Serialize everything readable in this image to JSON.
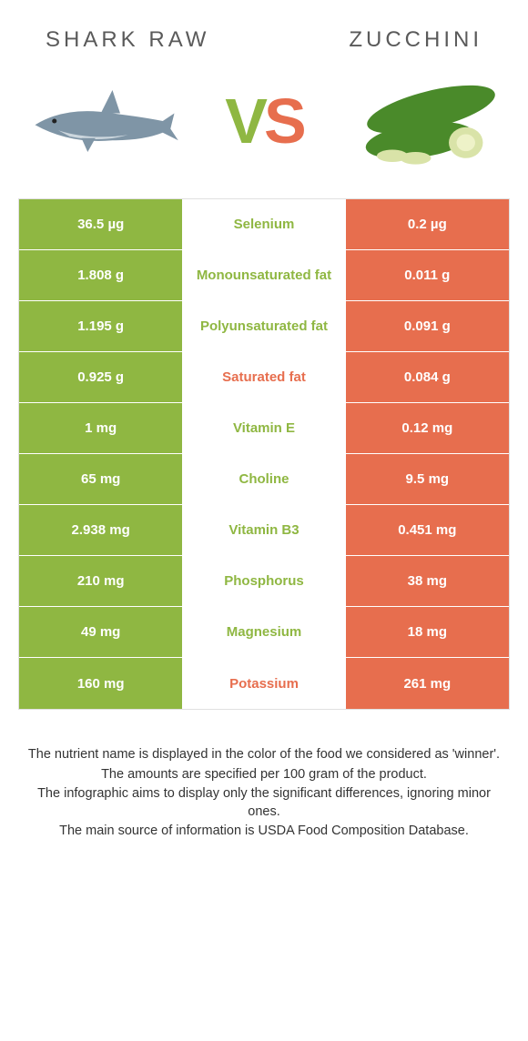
{
  "title_left": "SHARK RAW",
  "title_right": "ZUCCHINI",
  "vs": {
    "v": "V",
    "s": "S"
  },
  "colors": {
    "green": "#8fb742",
    "orange": "#e76e4e",
    "mid_bg": "#ffffff",
    "title_color": "#5a5a5a",
    "shark_body": "#7f95a6",
    "shark_belly": "#cdd7de",
    "zucchini_dark": "#4a8a2a",
    "zucchini_flesh": "#d9e3a8"
  },
  "rows": [
    {
      "nutrient": "Selenium",
      "left": "36.5 µg",
      "right": "0.2 µg",
      "winner": "left"
    },
    {
      "nutrient": "Monounsaturated fat",
      "left": "1.808 g",
      "right": "0.011 g",
      "winner": "left"
    },
    {
      "nutrient": "Polyunsaturated fat",
      "left": "1.195 g",
      "right": "0.091 g",
      "winner": "left"
    },
    {
      "nutrient": "Saturated fat",
      "left": "0.925 g",
      "right": "0.084 g",
      "winner": "right"
    },
    {
      "nutrient": "Vitamin E",
      "left": "1 mg",
      "right": "0.12 mg",
      "winner": "left"
    },
    {
      "nutrient": "Choline",
      "left": "65 mg",
      "right": "9.5 mg",
      "winner": "left"
    },
    {
      "nutrient": "Vitamin B3",
      "left": "2.938 mg",
      "right": "0.451 mg",
      "winner": "left"
    },
    {
      "nutrient": "Phosphorus",
      "left": "210 mg",
      "right": "38 mg",
      "winner": "left"
    },
    {
      "nutrient": "Magnesium",
      "left": "49 mg",
      "right": "18 mg",
      "winner": "left"
    },
    {
      "nutrient": "Potassium",
      "left": "160 mg",
      "right": "261 mg",
      "winner": "right"
    }
  ],
  "footer": [
    "The nutrient name is displayed in the color of the food we considered as 'winner'.",
    "The amounts are specified per 100 gram of the product.",
    "The infographic aims to display only the significant differences, ignoring minor ones.",
    "The main source of information is USDA Food Composition Database."
  ]
}
